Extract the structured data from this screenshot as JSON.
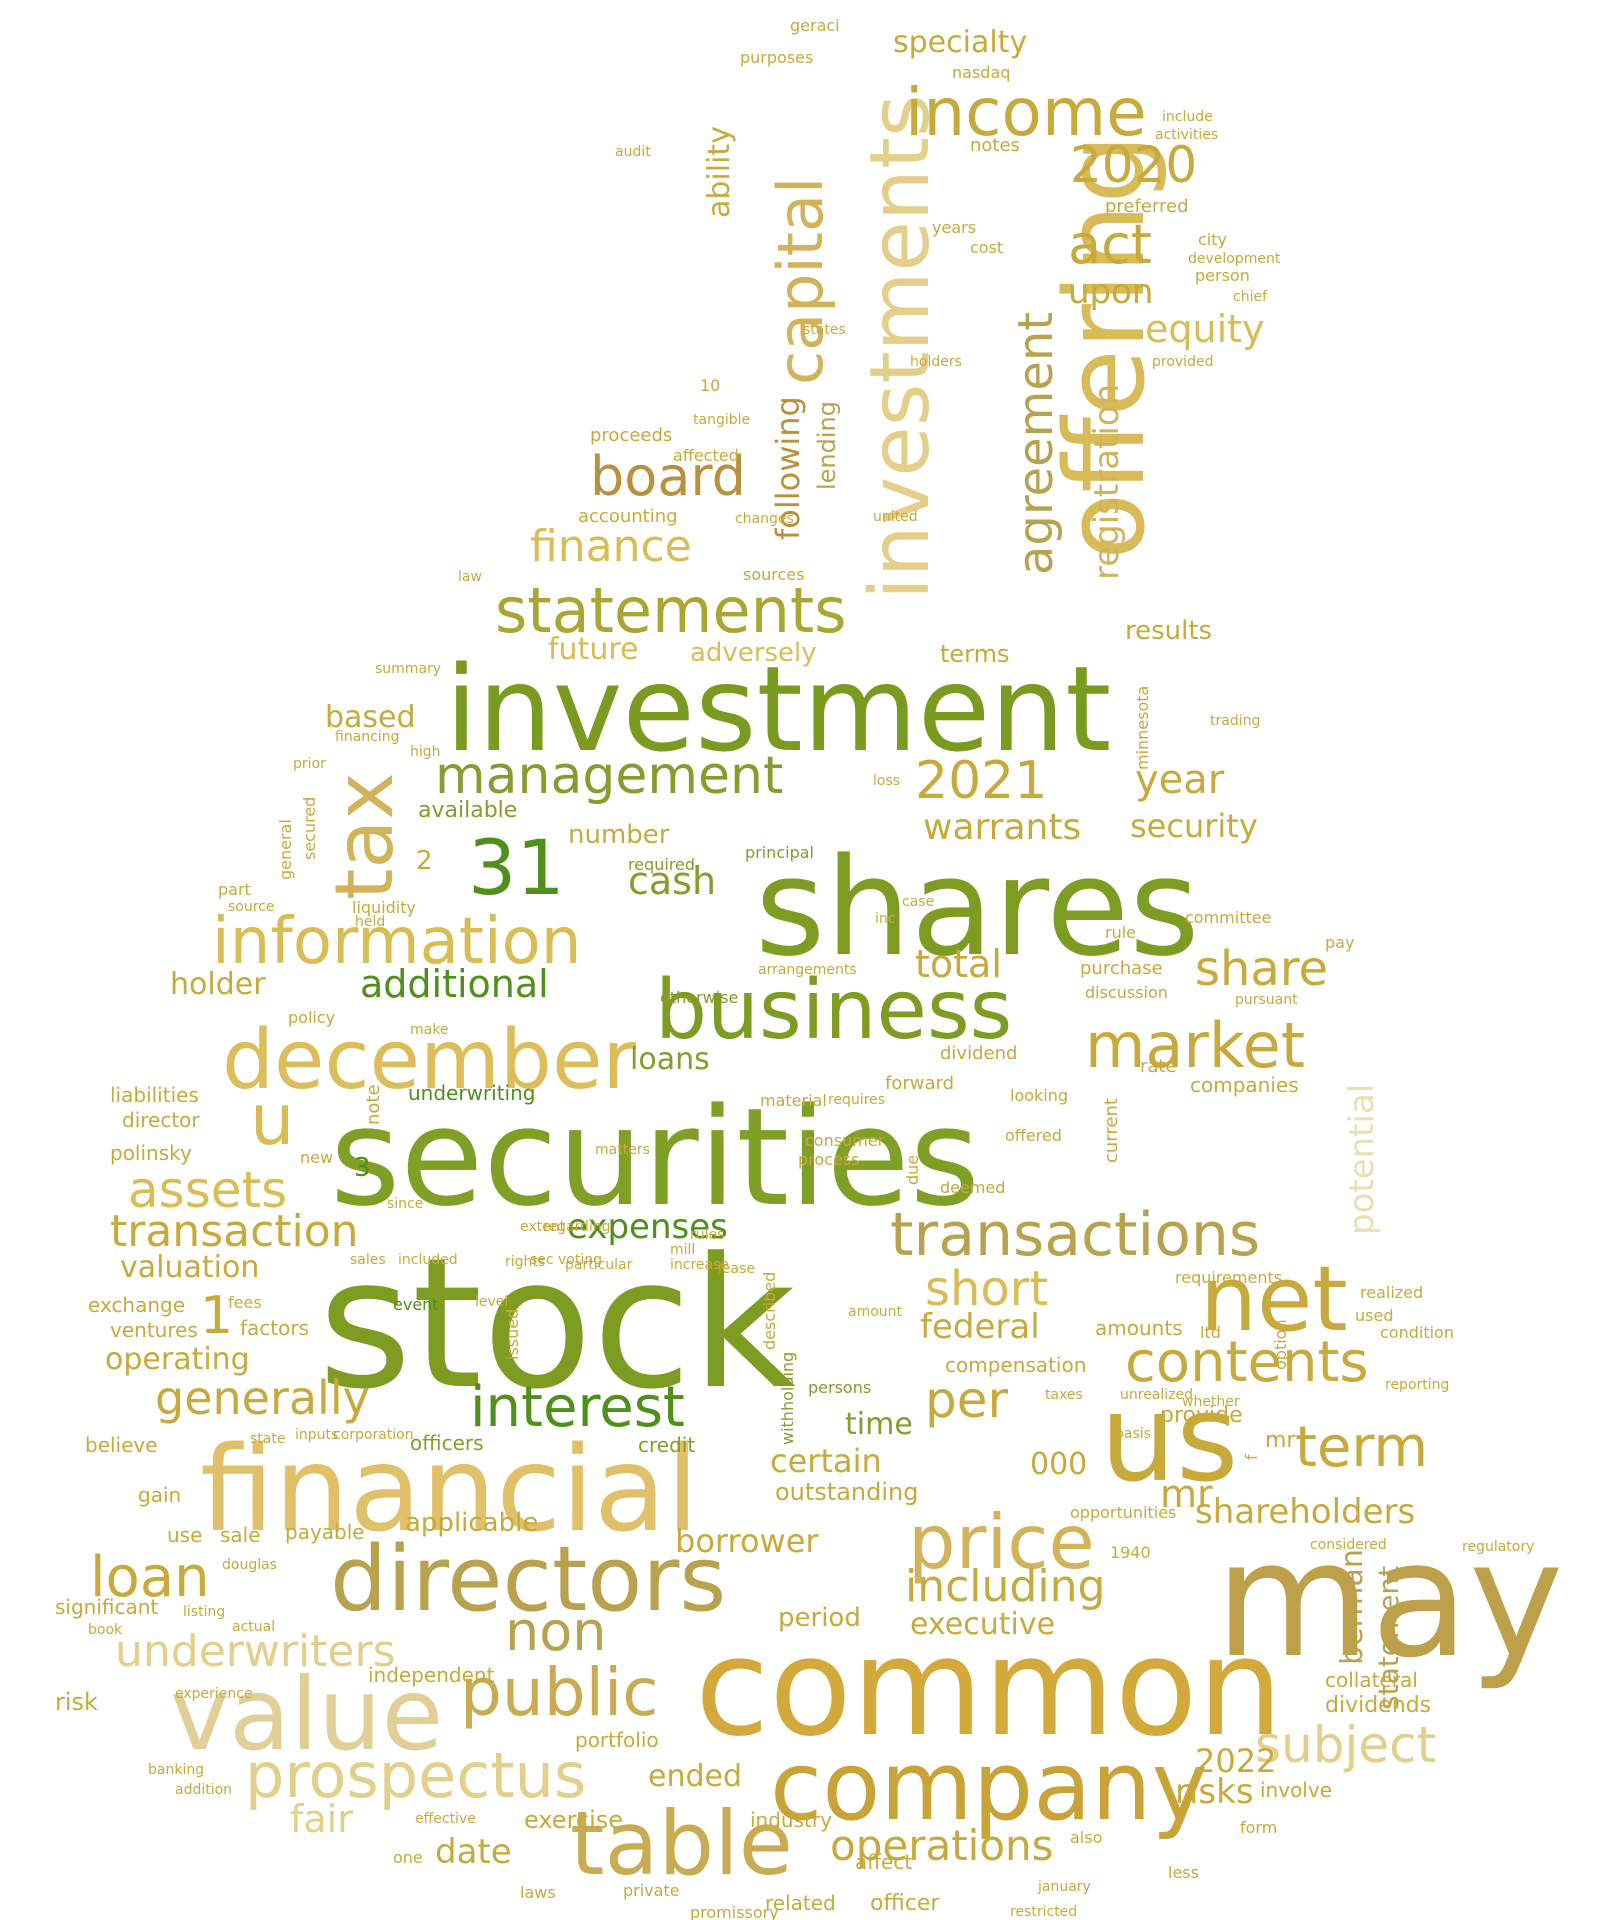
{
  "word_cloud": {
    "palette": [
      "#7fa024",
      "#c8a93c",
      "#d9bd52",
      "#e3cf8a",
      "#b9a24e",
      "#8a9a2c",
      "#4f8f1a",
      "#d2b35a"
    ],
    "words": [
      {
        "text": "stock",
        "color": "#7f9c22"
      },
      {
        "text": "securities",
        "color": "#7fa024"
      },
      {
        "text": "shares",
        "color": "#7f9c22"
      },
      {
        "text": "common",
        "color": "#d2a93a"
      },
      {
        "text": "investment",
        "color": "#7a9b1f"
      },
      {
        "text": "may",
        "color": "#bfa04a"
      },
      {
        "text": "financial",
        "color": "#e1c06a"
      },
      {
        "text": "offering",
        "color": "#d9ba58"
      },
      {
        "text": "investments",
        "color": "#e3cf8a"
      },
      {
        "text": "us",
        "color": "#c8a93c"
      },
      {
        "text": "company",
        "color": "#c9a338"
      },
      {
        "text": "directors",
        "color": "#b9a24e"
      },
      {
        "text": "value",
        "color": "#e1cf98"
      },
      {
        "text": "table",
        "color": "#c9ab52"
      },
      {
        "text": "business",
        "color": "#7f9c22"
      },
      {
        "text": "net",
        "color": "#c8a93c"
      },
      {
        "text": "december",
        "color": "#dcbd5a"
      },
      {
        "text": "price",
        "color": "#d2b35a"
      },
      {
        "text": "transactions",
        "color": "#b9a24e"
      },
      {
        "text": "management",
        "color": "#8a9a2c"
      },
      {
        "text": "information",
        "color": "#d9bd52"
      },
      {
        "text": "income",
        "color": "#c8a93c"
      },
      {
        "text": "capital",
        "color": "#d2b35a"
      },
      {
        "text": "tax",
        "color": "#d2b35a"
      },
      {
        "text": "statements",
        "color": "#a9a632"
      },
      {
        "text": "prospectus",
        "color": "#e3cf8a"
      },
      {
        "text": "public",
        "color": "#c9ab52"
      },
      {
        "text": "interest",
        "color": "#4f8f1a"
      },
      {
        "text": "31",
        "color": "#4f8f1a"
      },
      {
        "text": "2021",
        "color": "#c8a93c"
      },
      {
        "text": "market",
        "color": "#c8a93c"
      },
      {
        "text": "contents",
        "color": "#c8a93c"
      },
      {
        "text": "agreement",
        "color": "#b9a24e"
      },
      {
        "text": "board",
        "color": "#b9903c"
      },
      {
        "text": "term",
        "color": "#c8a93c"
      },
      {
        "text": "loan",
        "color": "#c8a93c"
      },
      {
        "text": "assets",
        "color": "#d9bd52"
      },
      {
        "text": "transaction",
        "color": "#c8a93c"
      },
      {
        "text": "generally",
        "color": "#c8a93c"
      },
      {
        "text": "subject",
        "color": "#e3cf8a"
      },
      {
        "text": "non",
        "color": "#b9a24e"
      },
      {
        "text": "2020",
        "color": "#c8a93c"
      },
      {
        "text": "act",
        "color": "#c8a93c"
      },
      {
        "text": "u",
        "color": "#d9bd52"
      },
      {
        "text": "share",
        "color": "#c8a93c"
      },
      {
        "text": "per",
        "color": "#c8a93c"
      },
      {
        "text": "short",
        "color": "#d9bd52"
      },
      {
        "text": "underwriters",
        "color": "#e3cf8a"
      },
      {
        "text": "including",
        "color": "#c8a93c"
      },
      {
        "text": "operations",
        "color": "#c8a93c"
      },
      {
        "text": "equity",
        "color": "#d9bd52"
      },
      {
        "text": "registration",
        "color": "#d2b35a"
      },
      {
        "text": "cash",
        "color": "#8a9a2c"
      },
      {
        "text": "additional",
        "color": "#4f8f1a"
      },
      {
        "text": "finance",
        "color": "#d9bd52"
      },
      {
        "text": "expenses",
        "color": "#4f8f1a"
      },
      {
        "text": "year",
        "color": "#c8a93c"
      },
      {
        "text": "warrants",
        "color": "#c8a93c"
      },
      {
        "text": "security",
        "color": "#c8a93c"
      },
      {
        "text": "shareholders",
        "color": "#c8a93c"
      },
      {
        "text": "borrower",
        "color": "#c8a93c"
      },
      {
        "text": "2022",
        "color": "#c8a93c"
      },
      {
        "text": "total",
        "color": "#c8a93c"
      },
      {
        "text": "federal",
        "color": "#c8a93c"
      },
      {
        "text": "mr",
        "color": "#c8a93c"
      },
      {
        "text": "potential",
        "color": "#eadfb4"
      },
      {
        "text": "berman",
        "color": "#b9a24e"
      },
      {
        "text": "statement",
        "color": "#b9a24e"
      },
      {
        "text": "executive",
        "color": "#c8a93c"
      },
      {
        "text": "risks",
        "color": "#c8a93c"
      },
      {
        "text": "certain",
        "color": "#c8a93c"
      },
      {
        "text": "fair",
        "color": "#e3cf8a"
      },
      {
        "text": "date",
        "color": "#c8a93c"
      },
      {
        "text": "ended",
        "color": "#c8a93c"
      },
      {
        "text": "valuation",
        "color": "#c8a93c"
      },
      {
        "text": "operating",
        "color": "#c8a93c"
      },
      {
        "text": "holder",
        "color": "#c8a93c"
      },
      {
        "text": "following",
        "color": "#b9903c"
      },
      {
        "text": "lending",
        "color": "#b9a24e"
      },
      {
        "text": "upon",
        "color": "#c8a93c"
      },
      {
        "text": "specialty",
        "color": "#c8a93c"
      },
      {
        "text": "ability",
        "color": "#c8a93c"
      },
      {
        "text": "future",
        "color": "#d9bd52"
      },
      {
        "text": "adversely",
        "color": "#d9bd52"
      },
      {
        "text": "based",
        "color": "#c8a93c"
      },
      {
        "text": "available",
        "color": "#8a9a2c"
      },
      {
        "text": "number",
        "color": "#c8a93c"
      },
      {
        "text": "loans",
        "color": "#8a9a2c"
      },
      {
        "text": "results",
        "color": "#c8a93c"
      },
      {
        "text": "terms",
        "color": "#c8a93c"
      },
      {
        "text": "time",
        "color": "#8a9a2c"
      },
      {
        "text": "000",
        "color": "#c8a93c"
      },
      {
        "text": "outstanding",
        "color": "#c8a93c"
      },
      {
        "text": "period",
        "color": "#c8a93c"
      },
      {
        "text": "dividends",
        "color": "#c8a93c"
      },
      {
        "text": "collateral",
        "color": "#c8a93c"
      },
      {
        "text": "portfolio",
        "color": "#c8a93c"
      },
      {
        "text": "independent",
        "color": "#c8a93c"
      },
      {
        "text": "applicable",
        "color": "#c8a93c"
      },
      {
        "text": "exercise",
        "color": "#c8a93c"
      },
      {
        "text": "industry",
        "color": "#c8a93c"
      },
      {
        "text": "officer",
        "color": "#c8a93c"
      },
      {
        "text": "related",
        "color": "#c8a93c"
      },
      {
        "text": "affect",
        "color": "#c8a93c"
      },
      {
        "text": "involve",
        "color": "#c8a93c"
      },
      {
        "text": "provide",
        "color": "#c8a93c"
      },
      {
        "text": "companies",
        "color": "#c8a93c"
      },
      {
        "text": "amounts",
        "color": "#c8a93c"
      },
      {
        "text": "compensation",
        "color": "#c8a93c"
      },
      {
        "text": "underwriting",
        "color": "#4f8f1a"
      },
      {
        "text": "officers",
        "color": "#8a9a2c"
      },
      {
        "text": "credit",
        "color": "#8a9a2c"
      },
      {
        "text": "director",
        "color": "#c8a93c"
      },
      {
        "text": "polinsky",
        "color": "#c8a93c"
      },
      {
        "text": "liabilities",
        "color": "#c8a93c"
      },
      {
        "text": "exchange",
        "color": "#c8a93c"
      },
      {
        "text": "factors",
        "color": "#c8a93c"
      },
      {
        "text": "ventures",
        "color": "#c8a93c"
      },
      {
        "text": "believe",
        "color": "#c8a93c"
      },
      {
        "text": "gain",
        "color": "#c8a93c"
      },
      {
        "text": "sale",
        "color": "#c8a93c"
      },
      {
        "text": "payable",
        "color": "#c8a93c"
      },
      {
        "text": "use",
        "color": "#c8a93c"
      },
      {
        "text": "significant",
        "color": "#c8a93c"
      },
      {
        "text": "risk",
        "color": "#c8a93c"
      },
      {
        "text": "1",
        "color": "#c8a93c"
      },
      {
        "text": "2",
        "color": "#c8a93c"
      },
      {
        "text": "3",
        "color": "#4f8f1a"
      },
      {
        "text": "liquidity",
        "color": "#c8a93c"
      },
      {
        "text": "purchase",
        "color": "#c8a93c"
      },
      {
        "text": "dividend",
        "color": "#c8a93c"
      },
      {
        "text": "forward",
        "color": "#c8a93c"
      },
      {
        "text": "looking",
        "color": "#c8a93c"
      },
      {
        "text": "offered",
        "color": "#c8a93c"
      },
      {
        "text": "current",
        "color": "#c8a93c"
      },
      {
        "text": "process",
        "color": "#c8a93c"
      },
      {
        "text": "consumer",
        "color": "#c8a93c"
      },
      {
        "text": "matters",
        "color": "#c8a93c"
      },
      {
        "text": "material",
        "color": "#c8a93c"
      },
      {
        "text": "requires",
        "color": "#c8a93c"
      },
      {
        "text": "rate",
        "color": "#c8a93c"
      },
      {
        "text": "ltd",
        "color": "#c8a93c"
      },
      {
        "text": "requirements",
        "color": "#c8a93c"
      },
      {
        "text": "realized",
        "color": "#c8a93c"
      },
      {
        "text": "condition",
        "color": "#c8a93c"
      },
      {
        "text": "used",
        "color": "#c8a93c"
      },
      {
        "text": "rights",
        "color": "#c8a93c"
      },
      {
        "text": "particular",
        "color": "#c8a93c"
      },
      {
        "text": "increase",
        "color": "#c8a93c"
      },
      {
        "text": "principal",
        "color": "#8a9a2c"
      },
      {
        "text": "required",
        "color": "#8a9a2c"
      },
      {
        "text": "otherwise",
        "color": "#8a9a2c"
      },
      {
        "text": "arrangements",
        "color": "#c8a93c"
      },
      {
        "text": "discussion",
        "color": "#c8a93c"
      },
      {
        "text": "pursuant",
        "color": "#c8a93c"
      },
      {
        "text": "rule",
        "color": "#c8a93c"
      },
      {
        "text": "committee",
        "color": "#c8a93c"
      },
      {
        "text": "pay",
        "color": "#c8a93c"
      },
      {
        "text": "minnesota",
        "color": "#c8a93c"
      },
      {
        "text": "trading",
        "color": "#c8a93c"
      },
      {
        "text": "loss",
        "color": "#c8a93c"
      },
      {
        "text": "case",
        "color": "#c8a93c"
      },
      {
        "text": "inc",
        "color": "#c8a93c"
      },
      {
        "text": "accounting",
        "color": "#c8a93c"
      },
      {
        "text": "proceeds",
        "color": "#c8a93c"
      },
      {
        "text": "sources",
        "color": "#c8a93c"
      },
      {
        "text": "united",
        "color": "#c8a93c"
      },
      {
        "text": "changes",
        "color": "#c8a93c"
      },
      {
        "text": "notes",
        "color": "#c8a93c"
      },
      {
        "text": "preferred",
        "color": "#c8a93c"
      },
      {
        "text": "city",
        "color": "#c8a93c"
      },
      {
        "text": "person",
        "color": "#c8a93c"
      },
      {
        "text": "years",
        "color": "#c8a93c"
      },
      {
        "text": "cost",
        "color": "#c8a93c"
      },
      {
        "text": "provided",
        "color": "#c8a93c"
      },
      {
        "text": "development",
        "color": "#c8a93c"
      },
      {
        "text": "chief",
        "color": "#c8a93c"
      },
      {
        "text": "nasdaq",
        "color": "#c8a93c"
      },
      {
        "text": "purposes",
        "color": "#c8a93c"
      },
      {
        "text": "geraci",
        "color": "#c8a93c"
      },
      {
        "text": "include",
        "color": "#c8a93c"
      },
      {
        "text": "activities",
        "color": "#c8a93c"
      },
      {
        "text": "holders",
        "color": "#c8a93c"
      },
      {
        "text": "states",
        "color": "#c8a93c"
      },
      {
        "text": "tangible",
        "color": "#c8a93c"
      },
      {
        "text": "affected",
        "color": "#c8a93c"
      },
      {
        "text": "10",
        "color": "#c8a93c"
      },
      {
        "text": "audit",
        "color": "#c8a93c"
      },
      {
        "text": "law",
        "color": "#c8a93c"
      },
      {
        "text": "summary",
        "color": "#c8a93c"
      },
      {
        "text": "financing",
        "color": "#c8a93c"
      },
      {
        "text": "high",
        "color": "#c8a93c"
      },
      {
        "text": "prior",
        "color": "#c8a93c"
      },
      {
        "text": "general",
        "color": "#c8a93c"
      },
      {
        "text": "secured",
        "color": "#c8a93c"
      },
      {
        "text": "part",
        "color": "#c8a93c"
      },
      {
        "text": "source",
        "color": "#c8a93c"
      },
      {
        "text": "held",
        "color": "#c8a93c"
      },
      {
        "text": "policy",
        "color": "#c8a93c"
      },
      {
        "text": "make",
        "color": "#c8a93c"
      },
      {
        "text": "new",
        "color": "#c8a93c"
      },
      {
        "text": "note",
        "color": "#c8a93c"
      },
      {
        "text": "since",
        "color": "#c8a93c"
      },
      {
        "text": "sales",
        "color": "#c8a93c"
      },
      {
        "text": "included",
        "color": "#c8a93c"
      },
      {
        "text": "event",
        "color": "#4f8f1a"
      },
      {
        "text": "sec",
        "color": "#c8a93c"
      },
      {
        "text": "mill",
        "color": "#c8a93c"
      },
      {
        "text": "rules",
        "color": "#c8a93c"
      },
      {
        "text": "regarding",
        "color": "#c8a93c"
      },
      {
        "text": "extent",
        "color": "#c8a93c"
      },
      {
        "text": "voting",
        "color": "#c8a93c"
      },
      {
        "text": "level",
        "color": "#c8a93c"
      },
      {
        "text": "fees",
        "color": "#c8a93c"
      },
      {
        "text": "due",
        "color": "#c8a93c"
      },
      {
        "text": "deemed",
        "color": "#c8a93c"
      },
      {
        "text": "issued",
        "color": "#c8a93c"
      },
      {
        "text": "persons",
        "color": "#8a9a2c"
      },
      {
        "text": "withholding",
        "color": "#8a9a2c"
      },
      {
        "text": "described",
        "color": "#c8a93c"
      },
      {
        "text": "lease",
        "color": "#c8a93c"
      },
      {
        "text": "amount",
        "color": "#c8a93c"
      },
      {
        "text": "taxes",
        "color": "#c8a93c"
      },
      {
        "text": "unrealized",
        "color": "#c8a93c"
      },
      {
        "text": "basis",
        "color": "#c8a93c"
      },
      {
        "text": "whether",
        "color": "#c8a93c"
      },
      {
        "text": "reporting",
        "color": "#c8a93c"
      },
      {
        "text": "option",
        "color": "#c8a93c"
      },
      {
        "text": "1940",
        "color": "#c8a93c"
      },
      {
        "text": "opportunities",
        "color": "#c8a93c"
      },
      {
        "text": "considered",
        "color": "#c8a93c"
      },
      {
        "text": "regulatory",
        "color": "#c8a93c"
      },
      {
        "text": "form",
        "color": "#c8a93c"
      },
      {
        "text": "also",
        "color": "#c8a93c"
      },
      {
        "text": "less",
        "color": "#c8a93c"
      },
      {
        "text": "laws",
        "color": "#c8a93c"
      },
      {
        "text": "one",
        "color": "#c8a93c"
      },
      {
        "text": "private",
        "color": "#c8a93c"
      },
      {
        "text": "promissory",
        "color": "#c8a93c"
      },
      {
        "text": "effective",
        "color": "#c8a93c"
      },
      {
        "text": "banking",
        "color": "#c8a93c"
      },
      {
        "text": "addition",
        "color": "#c8a93c"
      },
      {
        "text": "experience",
        "color": "#c8a93c"
      },
      {
        "text": "listing",
        "color": "#c8a93c"
      },
      {
        "text": "actual",
        "color": "#c8a93c"
      },
      {
        "text": "book",
        "color": "#c8a93c"
      },
      {
        "text": "state",
        "color": "#c8a93c"
      },
      {
        "text": "inputs",
        "color": "#c8a93c"
      },
      {
        "text": "corporation",
        "color": "#c8a93c"
      },
      {
        "text": "douglas",
        "color": "#c8a93c"
      },
      {
        "text": "restricted",
        "color": "#c8a93c"
      },
      {
        "text": "january",
        "color": "#c8a93c"
      },
      {
        "text": "f",
        "color": "#c8a93c"
      },
      {
        "text": "mr",
        "color": "#c8a93c"
      }
    ]
  }
}
